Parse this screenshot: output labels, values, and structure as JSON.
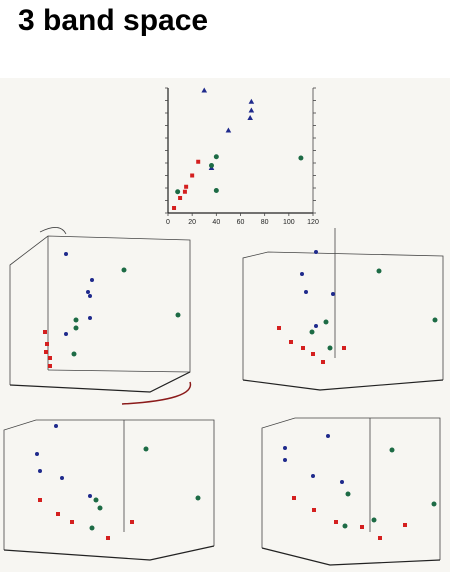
{
  "title": "3 band space",
  "chart_data": {
    "type": "scatter",
    "xlim": [
      0,
      120
    ],
    "xticks": [
      0,
      20,
      40,
      60,
      80,
      100,
      120
    ],
    "ylim": [
      0,
      100
    ],
    "series": [
      {
        "color": "#1f2a8c",
        "marker": "triangle",
        "x": [
          30,
          69,
          69,
          68,
          50,
          36
        ],
        "values": [
          98,
          89,
          82,
          76,
          66,
          36
        ]
      },
      {
        "color": "#1d6b45",
        "marker": "circle",
        "x": [
          110,
          40,
          36,
          40,
          8
        ],
        "values": [
          44,
          45,
          38,
          18,
          17
        ]
      },
      {
        "color": "#d41f1f",
        "marker": "square",
        "x": [
          25,
          20,
          15,
          10,
          5,
          14
        ],
        "values": [
          41,
          30,
          21,
          12,
          4,
          17
        ]
      }
    ]
  }
}
